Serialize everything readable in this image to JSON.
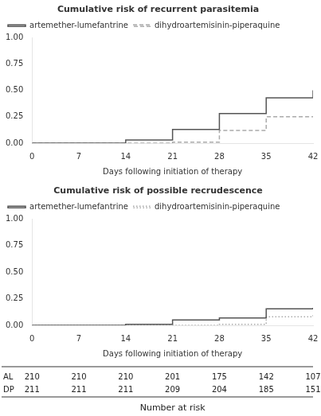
{
  "chart_data": [
    {
      "type": "step",
      "title": "Cumulative risk of recurrent parasitemia",
      "xlabel": "Days following initiation of therapy",
      "xlim": [
        0,
        42
      ],
      "xticks": [
        0,
        7,
        14,
        21,
        28,
        35,
        42
      ],
      "ylim": [
        0,
        1
      ],
      "yticks": [
        {
          "value": 0,
          "label": "0.00"
        },
        0.25,
        {
          "value": 0.5,
          "label": "0.50"
        },
        0.75,
        {
          "value": 1,
          "label": "1.00"
        }
      ],
      "grid": false,
      "legend": "upper left",
      "series": [
        {
          "name": "artemether-lumefantrine",
          "color": "#555555",
          "line_style": "solid",
          "x": [
            0,
            14,
            21,
            28,
            35,
            42
          ],
          "values": [
            0.0,
            0.03,
            0.13,
            0.28,
            0.43,
            0.5
          ]
        },
        {
          "name": "dihydroartemisinin-piperaquine",
          "color": "#aaaaaa",
          "line_style": "dashed",
          "x": [
            0,
            21,
            28,
            35,
            42
          ],
          "values": [
            0.0,
            0.01,
            0.12,
            0.25,
            0.25
          ]
        }
      ]
    },
    {
      "type": "step",
      "title": "Cumulative risk of possible recrudescence",
      "xlabel": "Days following initiation of therapy",
      "xlim": [
        0,
        42
      ],
      "xticks": [
        0,
        7,
        14,
        21,
        28,
        35,
        42
      ],
      "ylim": [
        0,
        1
      ],
      "yticks": [
        {
          "value": 0,
          "label": "0.00"
        },
        0.25,
        {
          "value": 0.5,
          "label": "0.50"
        },
        0.75,
        {
          "value": 1,
          "label": "1.00"
        }
      ],
      "grid": false,
      "legend": "upper left",
      "series": [
        {
          "name": "artemether-lumefantrine",
          "color": "#555555",
          "line_style": "solid",
          "x": [
            0,
            14,
            21,
            28,
            35,
            42
          ],
          "values": [
            0.0,
            0.01,
            0.05,
            0.07,
            0.155,
            0.165
          ]
        },
        {
          "name": "dihydroartemisinin-piperaquine",
          "color": "#aaaaaa",
          "line_style": "dotted",
          "x": [
            0,
            28,
            35,
            42
          ],
          "values": [
            0.0,
            0.01,
            0.08,
            0.095
          ]
        }
      ],
      "risk_table": {
        "title": "Number at risk",
        "rows": [
          {
            "name": "AL",
            "values": [
              210,
              210,
              210,
              201,
              175,
              142,
              107
            ]
          },
          {
            "name": "DP",
            "values": [
              211,
              211,
              211,
              209,
              204,
              185,
              151
            ]
          }
        ]
      }
    }
  ]
}
